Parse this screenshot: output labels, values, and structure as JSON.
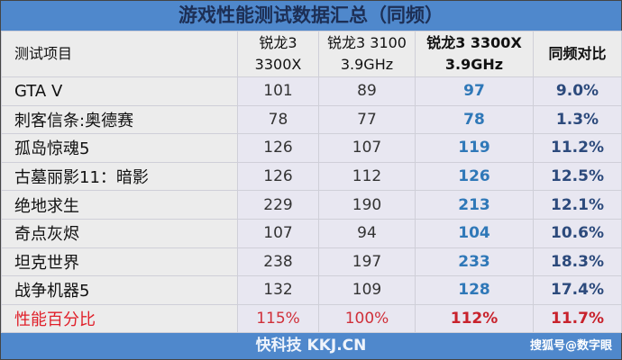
{
  "title": "游戏性能测试数据汇总（同频）",
  "headers": [
    "测试项目",
    "锐龙3\n3300X",
    "锐龙3 3100\n3.9GHz",
    "锐龙3 3300X\n3.9GHz",
    "同频对比"
  ],
  "rows": [
    [
      "GTA V",
      "101",
      "89",
      "97",
      "9.0%"
    ],
    [
      "刺客信条:奥德赛",
      "78",
      "77",
      "78",
      "1.3%"
    ],
    [
      "孤岛惊魂5",
      "126",
      "107",
      "119",
      "11.2%"
    ],
    [
      "古墓丽影11：暗影",
      "126",
      "112",
      "126",
      "12.5%"
    ],
    [
      "绝地求生",
      "229",
      "190",
      "213",
      "12.1%"
    ],
    [
      "奇点灰烬",
      "107",
      "94",
      "104",
      "10.6%"
    ],
    [
      "坦克世界",
      "238",
      "197",
      "233",
      "18.3%"
    ],
    [
      "战争机器5",
      "132",
      "109",
      "128",
      "17.4%"
    ]
  ],
  "summary": [
    "性能百分比",
    "115%",
    "100%",
    "112%",
    "11.7%"
  ],
  "footer": {
    "source": "快科技 KKJ.CN",
    "watermark": "搜狐号@数字眼"
  },
  "colors": {
    "banner": "#4f88cc",
    "highlight_blue": "#2f78b8",
    "summary_red": "#d0303a"
  }
}
